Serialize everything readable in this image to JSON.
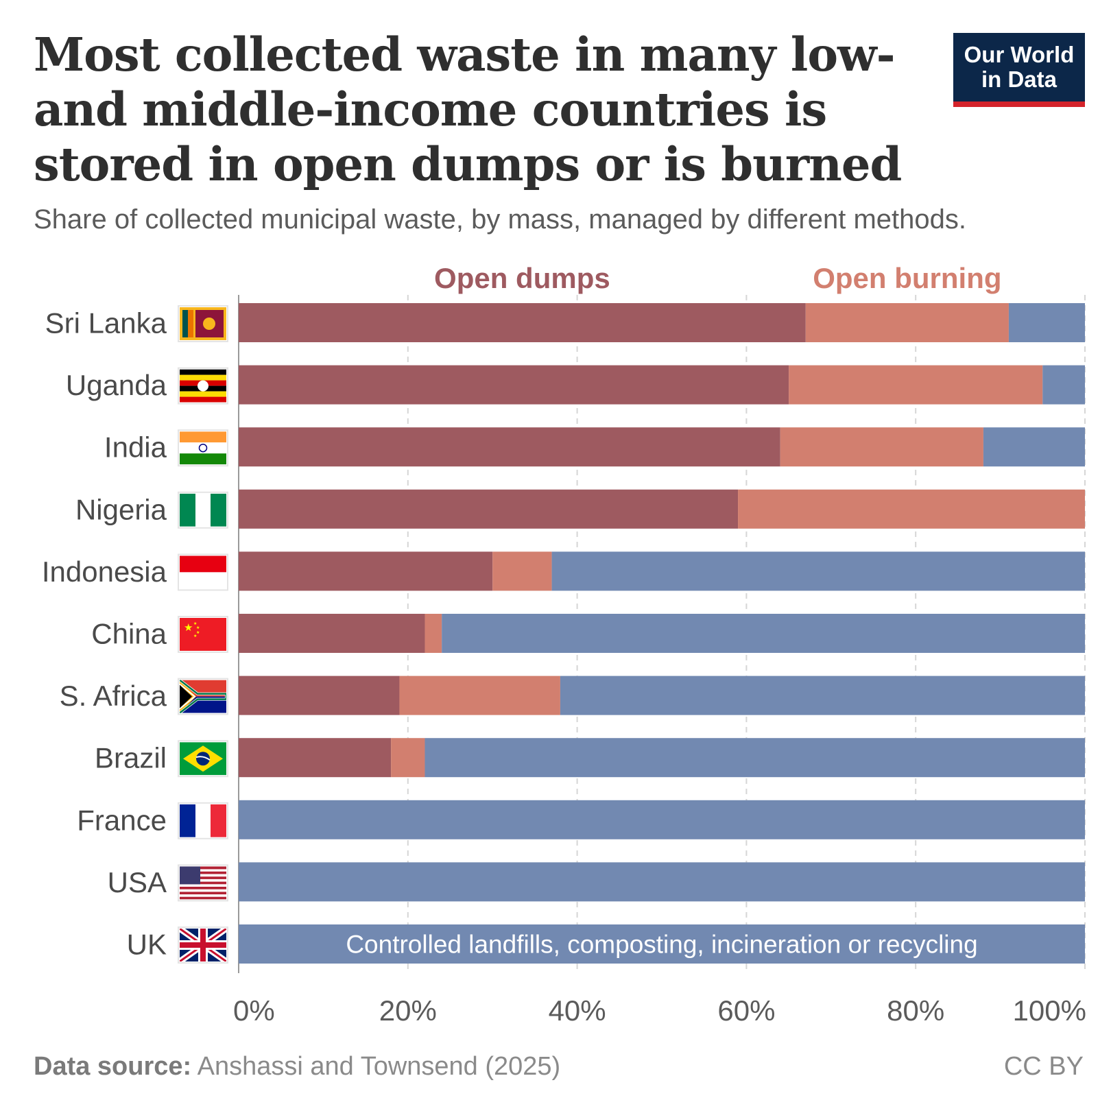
{
  "logo": {
    "line1": "Our World",
    "line2": "in Data",
    "bg_color": "#0c2749",
    "accent_color": "#d4232b"
  },
  "footer": {
    "source_label": "Data source:",
    "source_text": "Anshassi and Townsend (2025)",
    "license": "CC BY"
  },
  "chart_data": {
    "type": "bar",
    "orientation": "horizontal",
    "stacked": true,
    "title": "Most collected waste in many low- and middle-income countries is stored in open dumps or is burned",
    "subtitle": "Share of collected municipal waste, by mass, managed by different methods.",
    "categories": [
      "Sri Lanka",
      "Uganda",
      "India",
      "Nigeria",
      "Indonesia",
      "China",
      "S. Africa",
      "Brazil",
      "France",
      "USA",
      "UK"
    ],
    "flags": [
      "flag-sri-lanka",
      "flag-uganda",
      "flag-india",
      "flag-nigeria",
      "flag-indonesia",
      "flag-china",
      "flag-south-africa",
      "flag-brazil",
      "flag-france",
      "flag-usa",
      "flag-uk"
    ],
    "series": [
      {
        "name": "Open dumps",
        "color": "#9e5a60",
        "values": [
          67,
          65,
          64,
          59,
          30,
          22,
          19,
          18,
          0,
          0,
          0
        ]
      },
      {
        "name": "Open burning",
        "color": "#d27f6f",
        "values": [
          24,
          30,
          24,
          41,
          7,
          2,
          19,
          4,
          0,
          0,
          0
        ]
      },
      {
        "name": "Controlled landfills, composting, incineration or recycling",
        "color": "#7289b1",
        "values": [
          9,
          5,
          12,
          0,
          63,
          76,
          62,
          78,
          100,
          100,
          100
        ]
      }
    ],
    "xlim": [
      0,
      100
    ],
    "xticks": [
      "0%",
      "20%",
      "40%",
      "60%",
      "80%",
      "100%"
    ],
    "grid": "vertical dashed",
    "legend": "labels above and inside bars"
  }
}
